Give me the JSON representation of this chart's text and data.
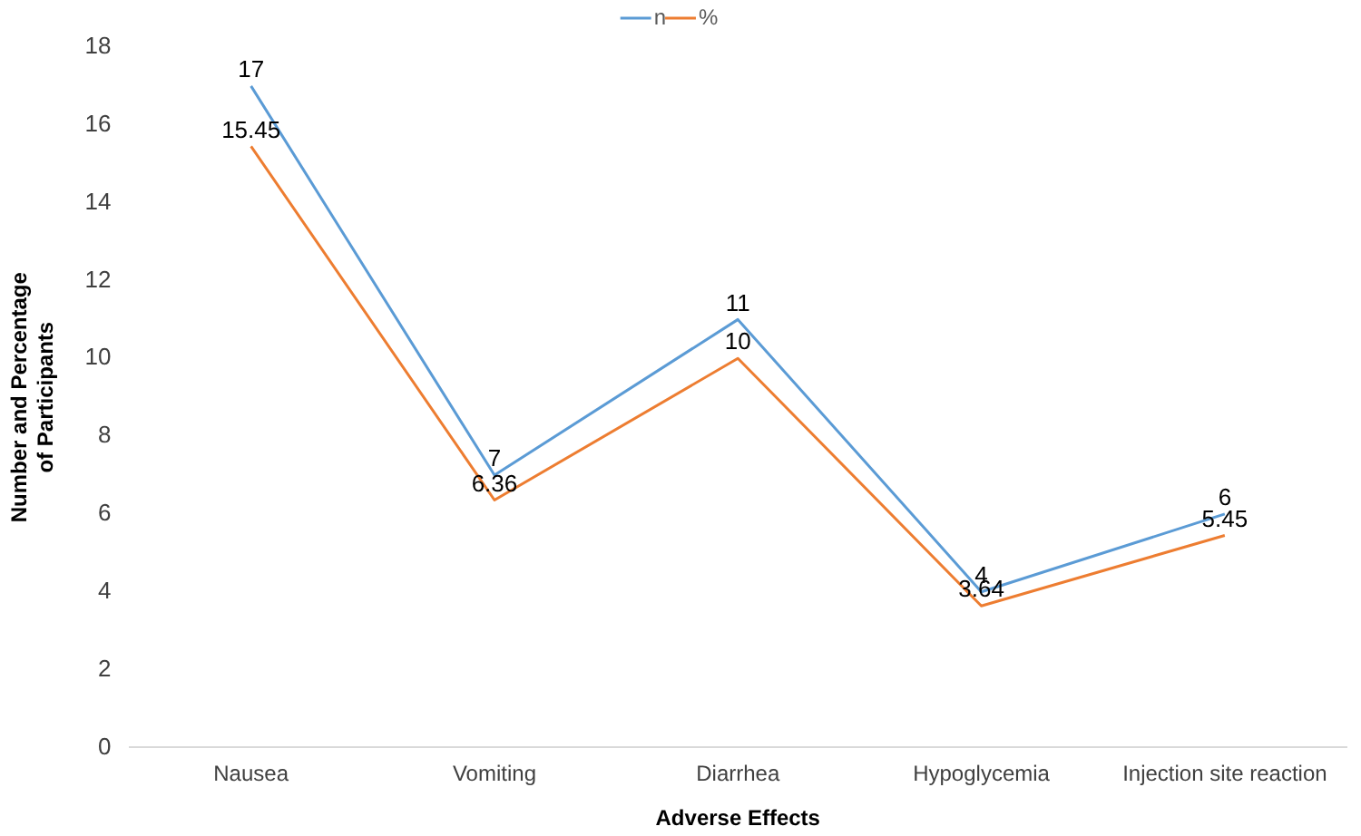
{
  "chart_data": {
    "type": "line",
    "xlabel": "Adverse Effects",
    "ylabel": "Number and Percentage of Participants",
    "categories": [
      "Nausea",
      "Vomiting",
      "Diarrhea",
      "Hypoglycemia",
      "Injection site reaction"
    ],
    "series": [
      {
        "name": "n",
        "color": "#5b9bd5",
        "values": [
          17,
          7,
          11,
          4,
          6
        ]
      },
      {
        "name": "%",
        "color": "#ed7d31",
        "values": [
          15.45,
          6.36,
          10,
          3.64,
          5.45
        ]
      }
    ],
    "ylim": [
      0,
      18
    ],
    "yticks": [
      0,
      2,
      4,
      6,
      8,
      10,
      12,
      14,
      16,
      18
    ],
    "grid": false,
    "legend": "top",
    "marker": "none",
    "line_style": "solid",
    "data_labels": true
  }
}
